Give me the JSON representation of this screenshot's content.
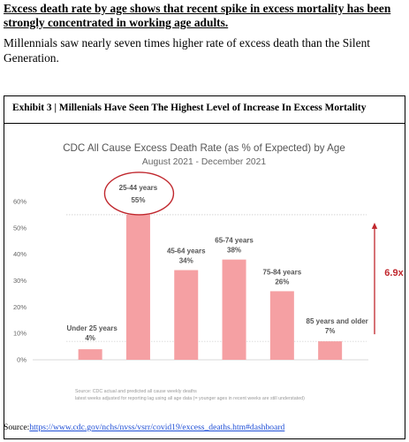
{
  "headline": "Excess death rate by age shows that recent spike in excess mortality has been strongly concentrated in working age adults.",
  "subheadline": "Millennials saw nearly seven times higher rate of excess death than the Silent Generation.",
  "exhibit_title": "Exhibit 3 | Millenials Have Seen The Highest Level of Increase In Excess Mortality",
  "source": {
    "label": "Source:",
    "link": "https://www.cdc.gov/nchs/nvss/vsrr/covid19/excess_deaths.htm#dashboard"
  },
  "chart_data": {
    "type": "bar",
    "title": "CDC All Cause Excess Death Rate (as % of Expected) by Age",
    "subtitle": "August 2021 - December 2021",
    "categories": [
      "Under 25 years",
      "25-44 years",
      "45-64 years",
      "65-74 years",
      "75-84 years",
      "85 years and older"
    ],
    "values": [
      4,
      55,
      34,
      38,
      26,
      7
    ],
    "value_labels": [
      "4%",
      "55%",
      "34%",
      "38%",
      "26%",
      "7%"
    ],
    "ylim": [
      0,
      60
    ],
    "y_ticks": [
      "0%",
      "10%",
      "20%",
      "30%",
      "40%",
      "50%",
      "60%"
    ],
    "grid": false,
    "bar_color": "#f5a0a3",
    "highlight_category": "25-44 years",
    "highlight_color": "#c0272d",
    "annotation": "6.9x",
    "annotation_color": "#c0272d",
    "reference_lines": [
      55,
      7
    ],
    "note_lines": [
      "Source: CDC actual and predicted all cause weekly deaths",
      "latest weeks adjusted for reporting lag using all age data (= younger ages in recent weeks are still understated)"
    ]
  }
}
